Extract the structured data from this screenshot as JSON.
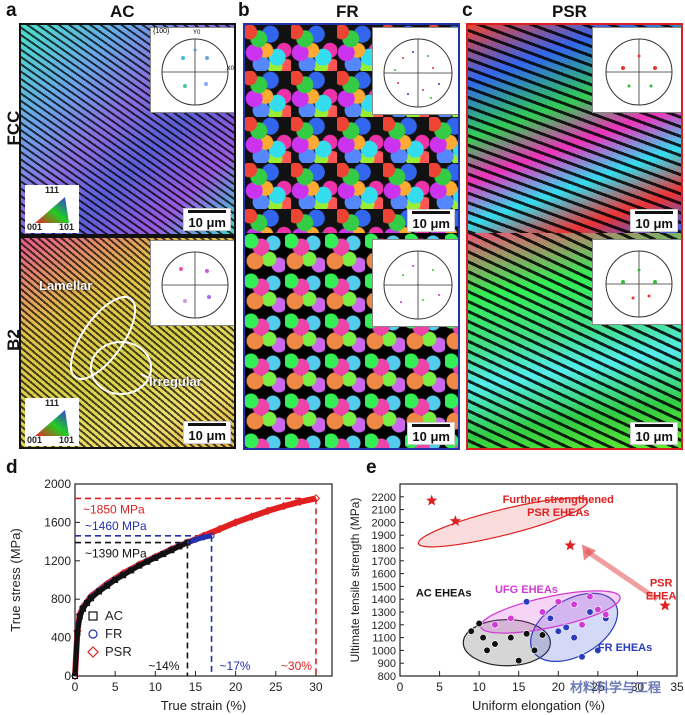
{
  "panels": {
    "a": {
      "letter": "a",
      "title": "AC"
    },
    "b": {
      "letter": "b",
      "title": "FR"
    },
    "c": {
      "letter": "c",
      "title": "PSR"
    },
    "d": {
      "letter": "d"
    },
    "e": {
      "letter": "e"
    }
  },
  "rows": {
    "fcc": "FCC",
    "b2": "B2"
  },
  "scale_label": "10 μm",
  "ipf": {
    "top": "111",
    "left": "001",
    "right": "101"
  },
  "pole_labels": {
    "family": "{100}",
    "y": "Y0",
    "x": "X0"
  },
  "annotations": {
    "lamellar": "Lamellar",
    "irregular": "Irregular"
  },
  "watermark": "材料科学与工程",
  "chart_data": [
    {
      "type": "line",
      "xlabel": "True strain (%)",
      "ylabel": "True stress (MPa)",
      "xlim": [
        0,
        32
      ],
      "ylim": [
        0,
        2000
      ],
      "xticks": [
        "0",
        "5",
        "10",
        "15",
        "20",
        "25",
        "30"
      ],
      "yticks": [
        "0",
        "400",
        "800",
        "1200",
        "1600",
        "2000"
      ],
      "legend_position": "bottom-left",
      "series": [
        {
          "name": "AC",
          "marker": "square",
          "color": "#111111",
          "x": [
            0,
            0.3,
            0.6,
            1,
            1.5,
            2,
            3,
            4,
            5,
            6,
            7,
            8,
            9,
            10,
            11,
            12,
            13,
            14
          ],
          "y": [
            0,
            450,
            620,
            700,
            760,
            810,
            880,
            940,
            1000,
            1050,
            1100,
            1150,
            1190,
            1230,
            1270,
            1310,
            1350,
            1390
          ]
        },
        {
          "name": "FR",
          "marker": "circle",
          "color": "#2230b0",
          "x": [
            0,
            0.3,
            0.6,
            1,
            2,
            3,
            4,
            5,
            6,
            7,
            8,
            9,
            10,
            11,
            12,
            13,
            14,
            15,
            16,
            17
          ],
          "y": [
            0,
            460,
            630,
            710,
            820,
            890,
            950,
            1005,
            1055,
            1105,
            1150,
            1195,
            1235,
            1275,
            1315,
            1355,
            1390,
            1420,
            1445,
            1460
          ]
        },
        {
          "name": "PSR",
          "marker": "diamond",
          "color": "#e02020",
          "x": [
            0,
            0.3,
            0.6,
            1,
            2,
            4,
            6,
            8,
            10,
            12,
            14,
            16,
            18,
            20,
            22,
            24,
            26,
            28,
            30
          ],
          "y": [
            0,
            470,
            640,
            720,
            830,
            960,
            1070,
            1160,
            1240,
            1320,
            1390,
            1460,
            1530,
            1600,
            1660,
            1720,
            1770,
            1815,
            1850
          ]
        }
      ],
      "annotations": [
        {
          "text": "~1850 MPa",
          "color": "#e02020"
        },
        {
          "text": "~1460 MPa",
          "color": "#2230b0"
        },
        {
          "text": "~1390 MPa",
          "color": "#111111"
        },
        {
          "text": "~14%",
          "color": "#111111"
        },
        {
          "text": "~17%",
          "color": "#2230b0"
        },
        {
          "text": "~30%",
          "color": "#e02020"
        }
      ]
    },
    {
      "type": "scatter",
      "xlabel": "Uniform elongation (%)",
      "ylabel": "Ultimate tensile strength (MPa)",
      "xlim": [
        0,
        35
      ],
      "ylim": [
        800,
        2300
      ],
      "xticks": [
        "0",
        "5",
        "10",
        "15",
        "20",
        "25",
        "30",
        "35"
      ],
      "yticks": [
        "800",
        "900",
        "1000",
        "1100",
        "1200",
        "1300",
        "1400",
        "1500",
        "1600",
        "1700",
        "1800",
        "1900",
        "2000",
        "2100",
        "2200"
      ],
      "groups": [
        {
          "name": "AC EHEAs",
          "color": "#111111",
          "marker": "circle",
          "points": [
            [
              9,
              1150
            ],
            [
              10,
              1210
            ],
            [
              10.5,
              1100
            ],
            [
              11,
              1000
            ],
            [
              12,
              1050
            ],
            [
              14,
              1100
            ],
            [
              15,
              920
            ],
            [
              16,
              1130
            ],
            [
              18,
              1120
            ],
            [
              17,
              1000
            ]
          ]
        },
        {
          "name": "FR EHEAs",
          "color": "#2a3bbd",
          "marker": "circle",
          "points": [
            [
              16,
              1380
            ],
            [
              19,
              1250
            ],
            [
              20,
              1150
            ],
            [
              21,
              1180
            ],
            [
              22,
              1100
            ],
            [
              23,
              950
            ],
            [
              24,
              1300
            ],
            [
              26,
              1250
            ],
            [
              25,
              1000
            ]
          ]
        },
        {
          "name": "UFG EHEAs",
          "color": "#d23ad6",
          "marker": "circle",
          "points": [
            [
              12,
              1200
            ],
            [
              14,
              1250
            ],
            [
              18,
              1300
            ],
            [
              20,
              1380
            ],
            [
              22,
              1360
            ],
            [
              24,
              1420
            ],
            [
              25,
              1320
            ],
            [
              23,
              1200
            ],
            [
              26,
              1280
            ]
          ]
        },
        {
          "name": "Further strengthened PSR EHEAs",
          "color": "#e02020",
          "marker": "star",
          "points": [
            [
              4,
              2170
            ],
            [
              7,
              2010
            ],
            [
              21.5,
              1820
            ]
          ]
        },
        {
          "name": "PSR EHEA",
          "color": "#e02020",
          "marker": "star",
          "points": [
            [
              33.5,
              1350
            ]
          ]
        }
      ]
    }
  ]
}
